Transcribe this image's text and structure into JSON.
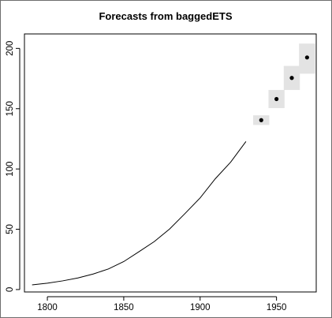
{
  "chart_data": {
    "type": "line",
    "title": "Forecasts from baggedETS",
    "xlabel": "",
    "ylabel": "",
    "xlim": [
      1785,
      1976
    ],
    "ylim": [
      -2,
      212
    ],
    "x_ticks": [
      1800,
      1850,
      1900,
      1950
    ],
    "y_ticks": [
      0,
      50,
      100,
      150,
      200
    ],
    "grid": false,
    "series": [
      {
        "values_x": [
          1790,
          1800,
          1810,
          1820,
          1830,
          1840,
          1850,
          1860,
          1870,
          1880,
          1890,
          1900,
          1910,
          1920,
          1930
        ],
        "values_y": [
          3.9,
          5.3,
          7.2,
          9.6,
          12.9,
          17.1,
          23.2,
          31.4,
          39.8,
          50.2,
          62.9,
          76.0,
          92.0,
          105.7,
          122.8
        ]
      }
    ],
    "forecasts": [
      {
        "x": 1940,
        "point": 140.5,
        "lower": 136.5,
        "upper": 144.5
      },
      {
        "x": 1950,
        "point": 158.0,
        "lower": 150.5,
        "upper": 165.5
      },
      {
        "x": 1960,
        "point": 175.5,
        "lower": 165.5,
        "upper": 185.5
      },
      {
        "x": 1970,
        "point": 192.5,
        "lower": 179.0,
        "upper": 204.0
      }
    ],
    "colors": {
      "line": "#000000",
      "point": "#000000",
      "interval": "#e3e3e3"
    }
  }
}
